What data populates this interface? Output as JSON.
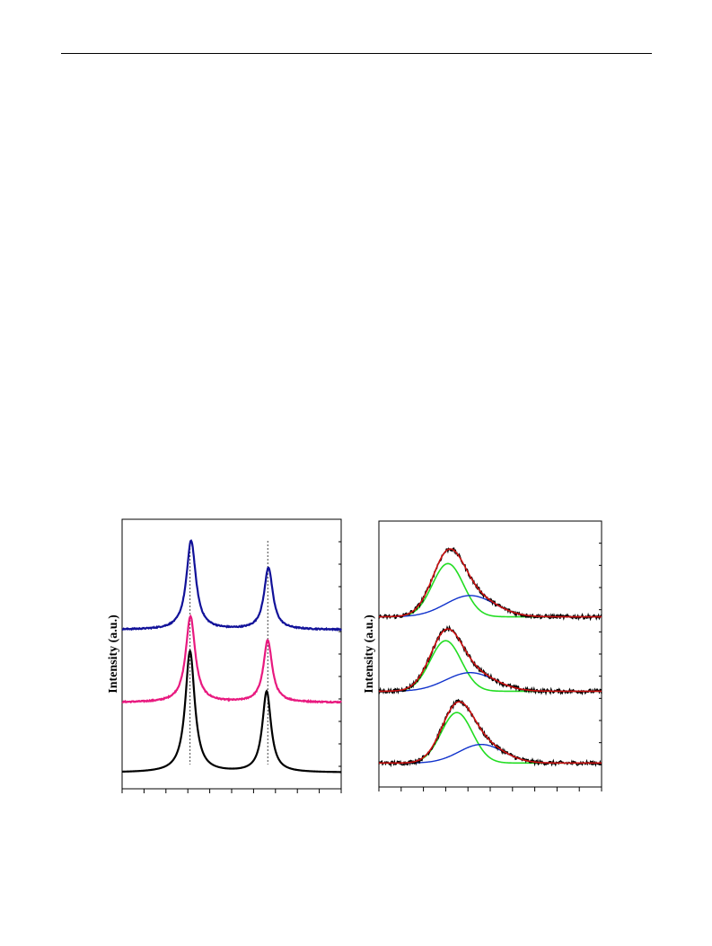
{
  "page": {
    "header_rule": true
  },
  "chart_data": [
    {
      "type": "line",
      "panel": "left",
      "ylabel": "Intensity (a.u.)",
      "xlabel": "",
      "x_range": [
        0,
        100
      ],
      "y_range": [
        0,
        100
      ],
      "x_ticks": 10,
      "grid": false,
      "reference_lines_x": [
        31,
        66.5
      ],
      "series": [
        {
          "color": "#000000",
          "baseline": 6,
          "peaks": [
            [
              31,
              45,
              2.6
            ],
            [
              66,
              30,
              2.4
            ]
          ],
          "noise": 0.0
        },
        {
          "color": "#e8197f",
          "baseline": 32,
          "peaks": [
            [
              31.2,
              32,
              2.6
            ],
            [
              66.5,
              23,
              2.4
            ]
          ],
          "noise": 0.4
        },
        {
          "color": "#111199",
          "baseline": 59,
          "peaks": [
            [
              31.5,
              33,
              2.6
            ],
            [
              66.8,
              23,
              2.4
            ]
          ],
          "noise": 0.4
        }
      ]
    },
    {
      "type": "line",
      "panel": "right",
      "ylabel": "Intensity (a.u.)",
      "xlabel": "",
      "x_range": [
        0,
        100
      ],
      "y_range": [
        0,
        100
      ],
      "x_ticks": 10,
      "grid": false,
      "fit_colors": {
        "data": "#000000",
        "envelope": "#cc1111",
        "component_1": "#22dd22",
        "component_2": "#1133cc"
      },
      "groups": [
        {
          "baseline": 9,
          "c1": [
            35,
            19,
            7
          ],
          "c2": [
            46,
            7,
            10
          ],
          "noise": 0.8
        },
        {
          "baseline": 36,
          "c1": [
            30,
            19,
            7
          ],
          "c2": [
            41,
            7,
            11
          ],
          "noise": 0.8
        },
        {
          "baseline": 64,
          "c1": [
            31,
            20,
            7
          ],
          "c2": [
            41,
            8,
            11
          ],
          "noise": 0.8
        }
      ]
    }
  ]
}
